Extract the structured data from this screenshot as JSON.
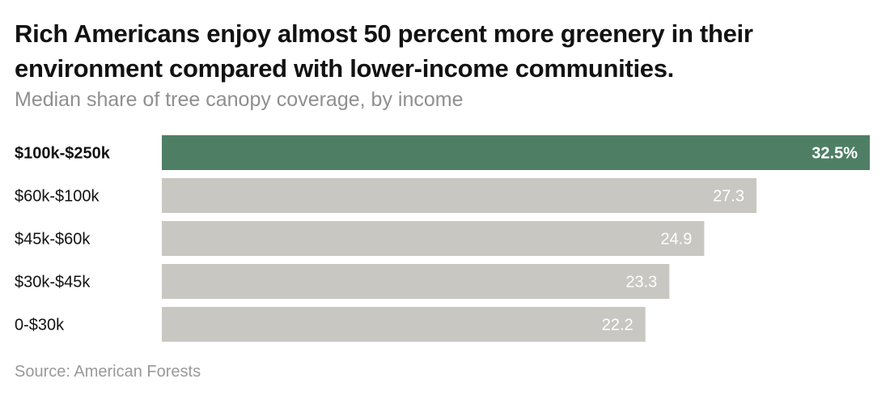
{
  "title": "Rich Americans enjoy almost 50 percent more greenery in their environment compared with lower-income communities.",
  "subtitle": "Median share of tree canopy coverage, by income",
  "source": "Source: American Forests",
  "colors": {
    "highlight_bar": "#4e7f65",
    "bar": "#c8c7c2",
    "bar_label": "#ffffff",
    "category_label": "#121212"
  },
  "chart_data": {
    "type": "bar",
    "orientation": "horizontal",
    "categories": [
      "$100k-$250k",
      "$60k-$100k",
      "$45k-$60k",
      "$30k-$45k",
      "0-$30k"
    ],
    "values": [
      32.5,
      27.3,
      24.9,
      23.3,
      22.2
    ],
    "value_labels": [
      "32.5%",
      "27.3",
      "24.9",
      "23.3",
      "22.2"
    ],
    "highlight_category": "$100k-$250k",
    "xlim": [
      0,
      32.5
    ],
    "grid": false,
    "legend": "none"
  }
}
